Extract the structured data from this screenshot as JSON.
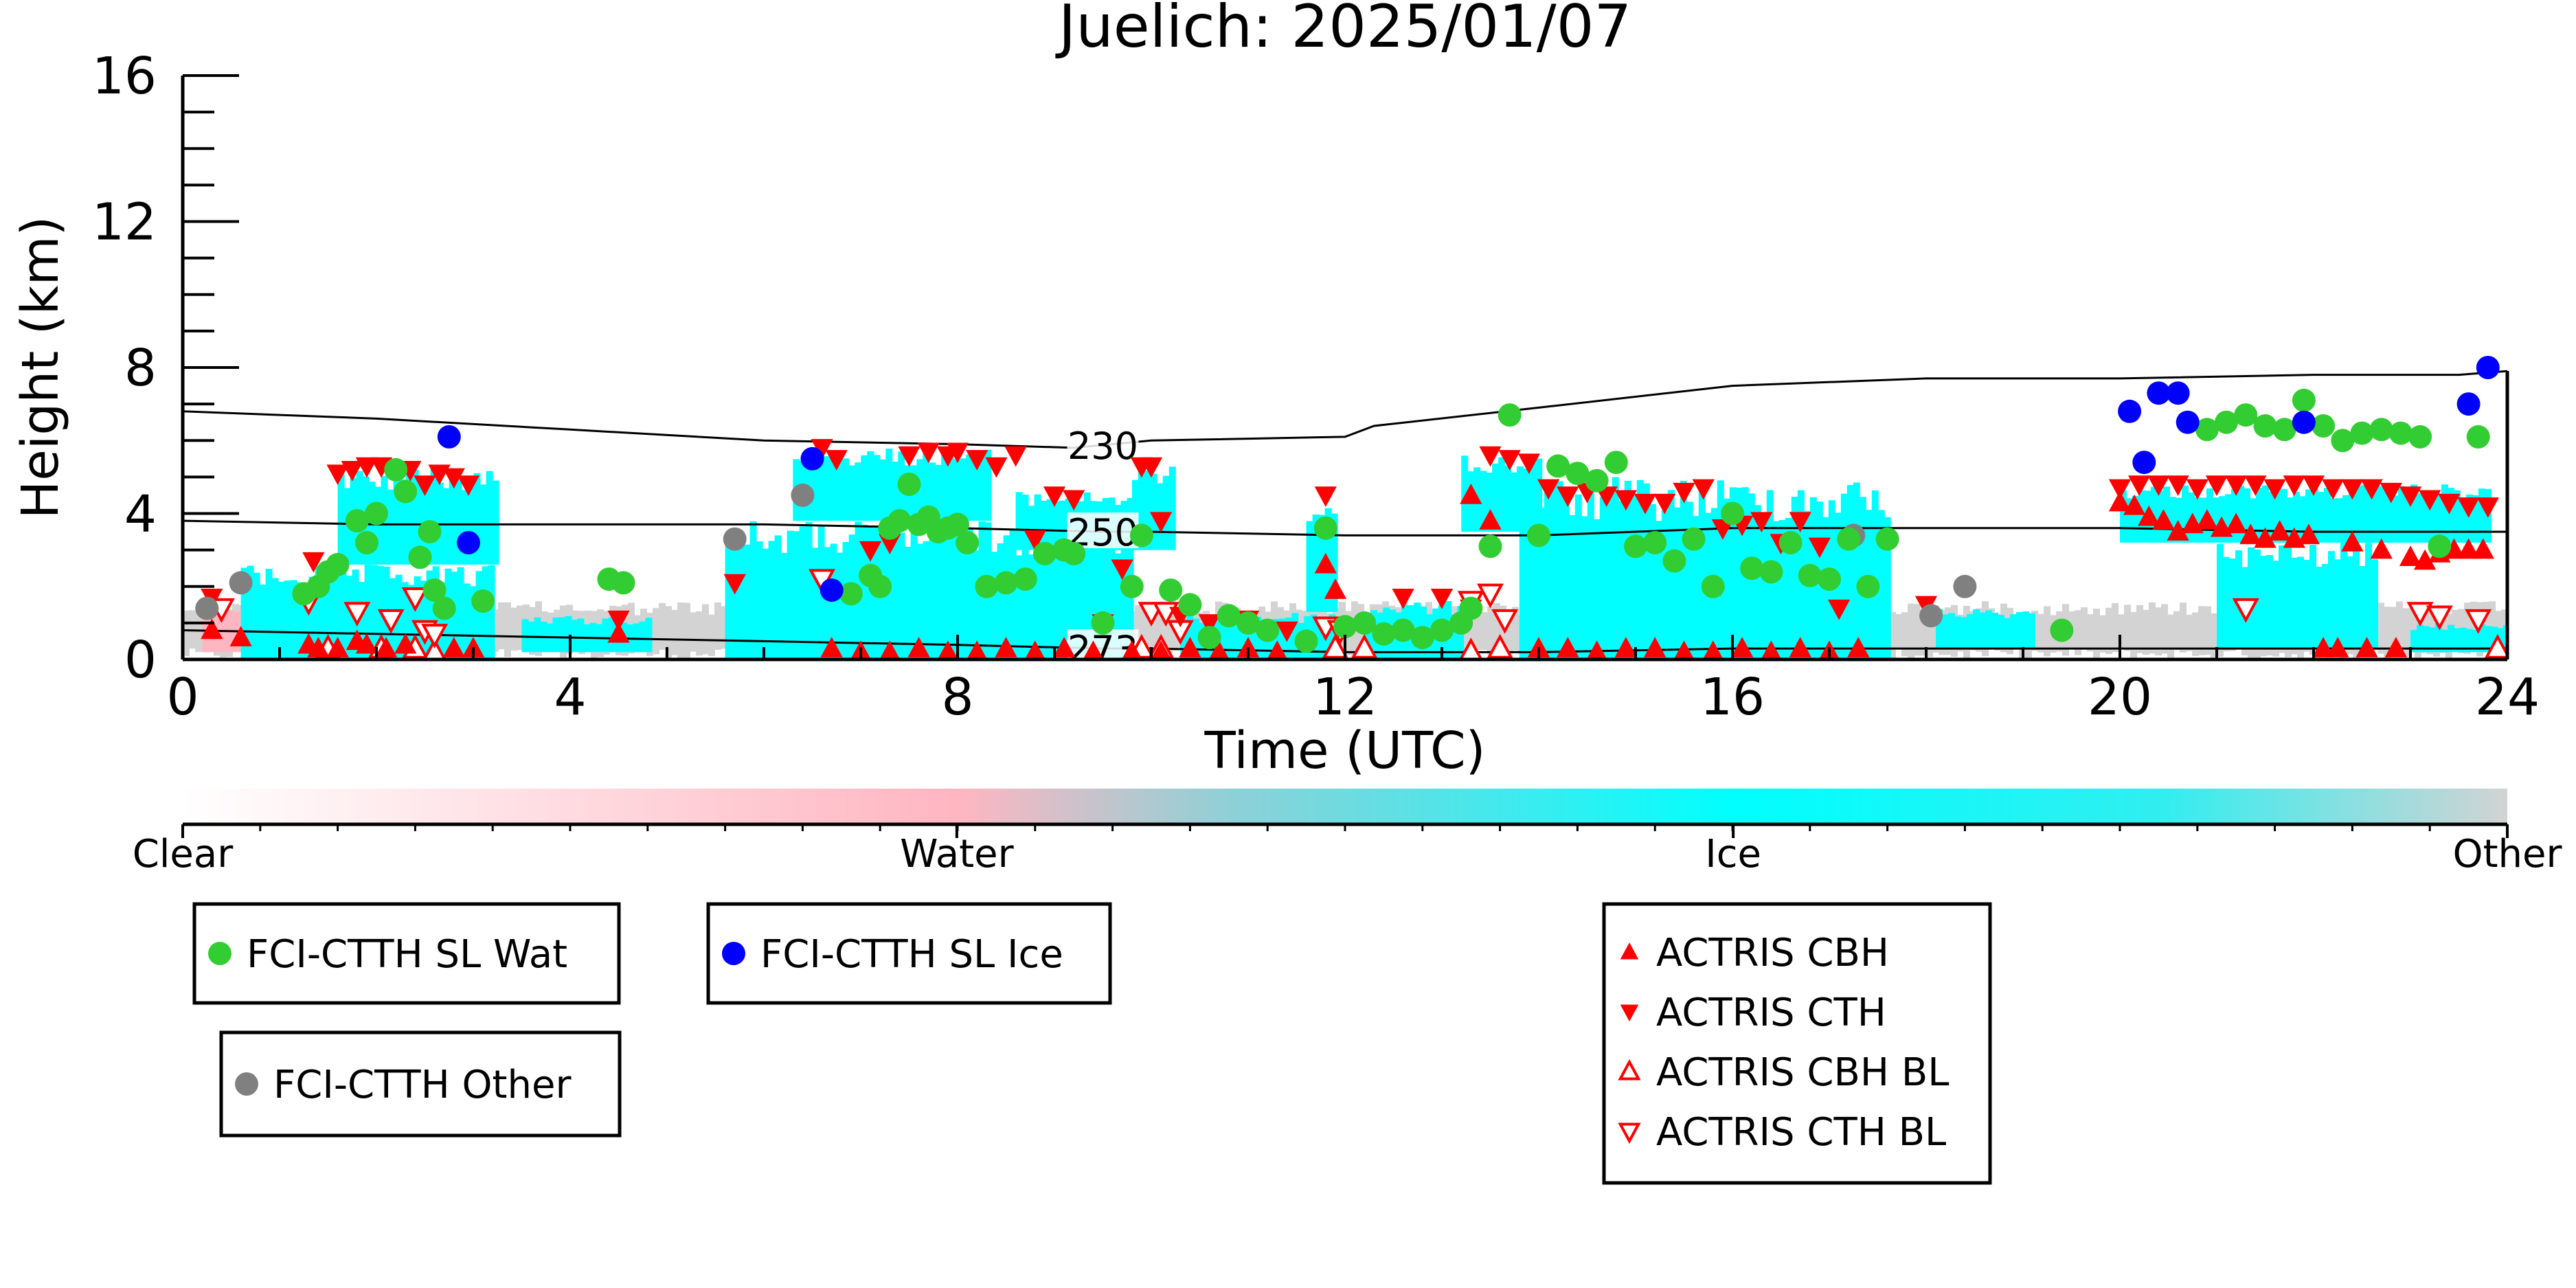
{
  "chart_data": {
    "type": "scatter",
    "title": "Juelich: 2025/01/07",
    "xlabel": "Time (UTC)",
    "ylabel": "Height (km)",
    "xlim": [
      0,
      24
    ],
    "ylim": [
      0,
      16
    ],
    "xticks": [
      0,
      4,
      8,
      12,
      16,
      20,
      24
    ],
    "yticks": [
      0,
      4,
      8,
      12,
      16
    ],
    "grid": false,
    "colorbar": {
      "labels": [
        "Clear",
        "Water",
        "Ice",
        "Other"
      ],
      "positions": [
        0,
        0.333,
        0.667,
        1.0
      ],
      "stops": [
        {
          "offset": 0.0,
          "color": "#ffffff"
        },
        {
          "offset": 0.333,
          "color": "#ffb6c1"
        },
        {
          "offset": 0.45,
          "color": "#8fd0d6"
        },
        {
          "offset": 0.667,
          "color": "#00ffff"
        },
        {
          "offset": 0.85,
          "color": "#30eef0"
        },
        {
          "offset": 1.0,
          "color": "#d3d3d3"
        }
      ]
    },
    "colors": {
      "wat": "#32cd32",
      "ice": "#0000ff",
      "other": "#808080",
      "actris": "#ff0000",
      "ice_cloud": "#00ffff",
      "other_cloud": "#d3d3d3",
      "water_cloud": "#ffb6c1"
    },
    "contours": [
      {
        "label": "230",
        "label_x": 9.5,
        "points": [
          [
            0,
            6.8
          ],
          [
            2,
            6.6
          ],
          [
            4,
            6.3
          ],
          [
            6,
            6.0
          ],
          [
            8,
            5.9
          ],
          [
            9.2,
            5.8
          ],
          [
            10,
            6.0
          ],
          [
            12,
            6.1
          ],
          [
            12.3,
            6.4
          ],
          [
            14,
            6.9
          ],
          [
            16,
            7.5
          ],
          [
            18,
            7.7
          ],
          [
            20,
            7.7
          ],
          [
            22,
            7.8
          ],
          [
            23.5,
            7.8
          ],
          [
            24,
            7.9
          ]
        ]
      },
      {
        "label": "250",
        "label_x": 9.5,
        "points": [
          [
            0,
            3.8
          ],
          [
            2,
            3.7
          ],
          [
            4,
            3.7
          ],
          [
            6,
            3.7
          ],
          [
            8,
            3.6
          ],
          [
            9.5,
            3.5
          ],
          [
            10,
            3.5
          ],
          [
            12,
            3.4
          ],
          [
            14,
            3.4
          ],
          [
            16,
            3.6
          ],
          [
            18,
            3.6
          ],
          [
            20,
            3.6
          ],
          [
            22,
            3.5
          ],
          [
            24,
            3.5
          ]
        ]
      },
      {
        "label": "273",
        "label_x": 9.5,
        "points": [
          [
            0,
            0.8
          ],
          [
            2,
            0.7
          ],
          [
            4,
            0.6
          ],
          [
            6,
            0.5
          ],
          [
            8,
            0.4
          ],
          [
            9.5,
            0.3
          ],
          [
            10,
            0.3
          ],
          [
            12,
            0.2
          ],
          [
            14,
            0.2
          ],
          [
            16,
            0.3
          ],
          [
            18,
            0.3
          ],
          [
            20,
            0.3
          ],
          [
            22,
            0.3
          ],
          [
            24,
            0.3
          ]
        ]
      }
    ],
    "cloud_blocks": [
      {
        "class": "other",
        "x0": 0.0,
        "x1": 24.0,
        "y0": 0.0,
        "y1": 1.6
      },
      {
        "class": "water",
        "x0": 0.2,
        "x1": 0.9,
        "y0": 0.2,
        "y1": 1.5
      },
      {
        "class": "ice",
        "x0": 0.6,
        "x1": 3.2,
        "y0": 0.0,
        "y1": 2.6
      },
      {
        "class": "ice",
        "x0": 1.6,
        "x1": 3.2,
        "y0": 2.6,
        "y1": 5.3
      },
      {
        "class": "ice",
        "x0": 3.5,
        "x1": 4.8,
        "y0": 0.2,
        "y1": 1.2
      },
      {
        "class": "ice",
        "x0": 5.6,
        "x1": 9.8,
        "y0": 0.0,
        "y1": 3.8
      },
      {
        "class": "ice",
        "x0": 6.3,
        "x1": 8.3,
        "y0": 3.8,
        "y1": 5.8
      },
      {
        "class": "ice",
        "x0": 8.6,
        "x1": 9.8,
        "y0": 3.0,
        "y1": 4.6
      },
      {
        "class": "ice",
        "x0": 9.8,
        "x1": 10.2,
        "y0": 3.0,
        "y1": 5.3
      },
      {
        "class": "ice",
        "x0": 10.3,
        "x1": 11.9,
        "y0": 0.0,
        "y1": 1.3
      },
      {
        "class": "ice",
        "x0": 11.6,
        "x1": 11.9,
        "y0": 1.3,
        "y1": 4.4
      },
      {
        "class": "ice",
        "x0": 12.2,
        "x1": 13.2,
        "y0": 0.0,
        "y1": 1.6
      },
      {
        "class": "ice",
        "x0": 13.2,
        "x1": 14.0,
        "y0": 3.5,
        "y1": 5.6
      },
      {
        "class": "ice",
        "x0": 13.8,
        "x1": 17.6,
        "y0": 0.0,
        "y1": 5.0
      },
      {
        "class": "ice",
        "x0": 18.1,
        "x1": 19.1,
        "y0": 0.3,
        "y1": 1.4
      },
      {
        "class": "ice",
        "x0": 20.0,
        "x1": 23.8,
        "y0": 3.2,
        "y1": 4.8
      },
      {
        "class": "ice",
        "x0": 21.0,
        "x1": 22.6,
        "y0": 0.3,
        "y1": 3.2
      },
      {
        "class": "ice",
        "x0": 23.0,
        "x1": 24.0,
        "y0": 0.2,
        "y1": 1.0
      }
    ],
    "series": [
      {
        "name": "FCI-CTTH SL Wat",
        "marker": "circle",
        "color": "#32cd32",
        "x": [
          1.25,
          1.4,
          1.5,
          1.6,
          1.8,
          1.9,
          2.0,
          2.2,
          2.3,
          2.45,
          2.55,
          2.6,
          2.7,
          3.1,
          4.4,
          4.55,
          6.9,
          7.1,
          7.2,
          7.3,
          7.4,
          7.5,
          7.6,
          7.7,
          7.8,
          7.9,
          8.0,
          8.1,
          8.3,
          8.5,
          8.7,
          8.9,
          9.1,
          9.2,
          9.5,
          9.8,
          9.9,
          10.2,
          10.4,
          10.6,
          10.8,
          11.0,
          11.2,
          11.6,
          11.8,
          12.0,
          12.2,
          12.4,
          12.6,
          12.8,
          13.0,
          13.2,
          13.3,
          13.5,
          13.7,
          14.0,
          14.2,
          14.4,
          14.6,
          14.8,
          15.0,
          15.2,
          15.4,
          15.6,
          15.8,
          16.0,
          16.2,
          16.4,
          16.6,
          16.8,
          17.0,
          17.2,
          17.4,
          17.6,
          19.4,
          20.9,
          21.1,
          21.3,
          21.5,
          21.7,
          21.9,
          22.1,
          22.3,
          22.5,
          22.7,
          22.9,
          23.1,
          23.3,
          23.7
        ],
        "y": [
          1.8,
          2.0,
          2.4,
          2.6,
          3.8,
          3.2,
          4.0,
          5.2,
          4.6,
          2.8,
          3.5,
          1.9,
          1.4,
          1.6,
          2.2,
          2.1,
          1.8,
          2.3,
          2.0,
          3.6,
          3.8,
          4.8,
          3.7,
          3.9,
          3.5,
          3.6,
          3.7,
          3.2,
          2.0,
          2.1,
          2.2,
          2.9,
          3.0,
          2.9,
          1.0,
          2.0,
          3.4,
          1.9,
          1.5,
          0.6,
          1.2,
          1.0,
          0.8,
          0.5,
          3.6,
          0.9,
          1.0,
          0.7,
          0.8,
          0.6,
          0.8,
          1.0,
          1.4,
          3.1,
          6.7,
          3.4,
          5.3,
          5.1,
          4.9,
          5.4,
          3.1,
          3.2,
          2.7,
          3.3,
          2.0,
          4.0,
          2.5,
          2.4,
          3.2,
          2.3,
          2.2,
          3.3,
          2.0,
          3.3,
          0.8,
          6.3,
          6.5,
          6.7,
          6.4,
          6.3,
          7.1,
          6.4,
          6.0,
          6.2,
          6.3,
          6.2,
          6.1,
          3.1,
          6.1
        ]
      },
      {
        "name": "FCI-CTTH SL Ice",
        "marker": "circle",
        "color": "#0000ff",
        "x": [
          2.75,
          2.95,
          6.5,
          6.7,
          20.1,
          20.25,
          20.4,
          20.6,
          20.7,
          21.9,
          23.6,
          23.8
        ],
        "y": [
          6.1,
          3.2,
          5.5,
          1.9,
          6.8,
          5.4,
          7.3,
          7.3,
          6.5,
          6.5,
          7.0,
          8.0
        ]
      },
      {
        "name": "FCI-CTTH Other",
        "marker": "circle",
        "color": "#808080",
        "x": [
          0.25,
          0.6,
          5.7,
          6.4,
          17.25,
          18.05,
          18.4
        ],
        "y": [
          1.4,
          2.1,
          3.3,
          4.5,
          3.4,
          1.2,
          2.0
        ]
      },
      {
        "name": "ACTRIS CBH",
        "marker": "triangle-up",
        "color": "#ff0000",
        "x": [
          0.3,
          0.6,
          1.3,
          1.4,
          1.6,
          1.8,
          1.9,
          2.1,
          2.3,
          2.8,
          3.0,
          4.5,
          6.7,
          7.0,
          7.3,
          7.6,
          7.9,
          8.2,
          8.5,
          8.8,
          9.1,
          9.4,
          9.8,
          10.1,
          10.4,
          10.7,
          11.0,
          11.3,
          11.8,
          11.9,
          13.3,
          13.5,
          14.0,
          14.3,
          14.6,
          14.9,
          15.2,
          15.5,
          15.8,
          16.1,
          16.4,
          16.7,
          17.0,
          17.3,
          20.0,
          20.15,
          20.3,
          20.45,
          20.6,
          20.75,
          20.9,
          21.05,
          21.2,
          21.35,
          21.5,
          21.65,
          21.8,
          21.95,
          22.1,
          22.25,
          22.4,
          22.55,
          22.7,
          22.85,
          23.0,
          23.15,
          23.3,
          23.45,
          23.6,
          23.75
        ],
        "y": [
          0.8,
          0.6,
          0.4,
          0.3,
          0.3,
          0.5,
          0.4,
          0.3,
          0.4,
          0.3,
          0.3,
          0.7,
          0.3,
          0.2,
          0.2,
          0.3,
          0.2,
          0.2,
          0.3,
          0.2,
          0.3,
          0.2,
          0.2,
          0.2,
          0.3,
          0.2,
          0.3,
          0.2,
          2.6,
          1.9,
          4.5,
          3.8,
          0.3,
          0.3,
          0.2,
          0.3,
          0.3,
          0.2,
          0.2,
          0.3,
          0.2,
          0.3,
          0.2,
          0.3,
          4.3,
          4.2,
          3.9,
          3.8,
          3.5,
          3.7,
          3.8,
          3.6,
          3.7,
          3.4,
          3.3,
          3.5,
          3.3,
          3.4,
          0.3,
          0.3,
          3.2,
          0.3,
          3.0,
          0.3,
          2.8,
          2.7,
          2.9,
          3.0,
          3.0,
          3.0
        ],
        "filled": true
      },
      {
        "name": "ACTRIS CTH",
        "marker": "triangle-down",
        "color": "#ff0000",
        "x": [
          0.3,
          1.35,
          1.6,
          1.75,
          1.9,
          2.05,
          2.2,
          2.35,
          2.5,
          2.65,
          2.8,
          2.95,
          4.5,
          5.7,
          6.6,
          6.75,
          7.1,
          7.3,
          7.5,
          7.7,
          7.9,
          8.0,
          8.2,
          8.4,
          8.6,
          8.8,
          9.0,
          9.2,
          9.5,
          9.7,
          9.9,
          10.0,
          10.1,
          10.3,
          10.6,
          11.0,
          11.4,
          11.8,
          12.6,
          13.0,
          13.3,
          13.5,
          13.7,
          13.9,
          14.1,
          14.3,
          14.5,
          14.7,
          14.9,
          15.1,
          15.3,
          15.5,
          15.7,
          15.9,
          16.1,
          16.3,
          16.5,
          16.7,
          16.9,
          17.1,
          18.0,
          20.0,
          20.2,
          20.4,
          20.6,
          20.8,
          21.0,
          21.2,
          21.4,
          21.6,
          21.8,
          22.0,
          22.2,
          22.4,
          22.6,
          22.8,
          23.0,
          23.2,
          23.4,
          23.6,
          23.8
        ],
        "y": [
          1.7,
          2.7,
          5.1,
          5.2,
          5.3,
          5.3,
          5.2,
          5.2,
          4.8,
          5.1,
          5.0,
          4.8,
          1.1,
          2.1,
          5.8,
          5.5,
          3.0,
          3.2,
          5.6,
          5.7,
          5.6,
          5.7,
          5.5,
          5.3,
          5.6,
          3.3,
          4.5,
          4.4,
          1.0,
          2.5,
          5.3,
          5.3,
          3.8,
          1.2,
          1.0,
          1.1,
          0.8,
          4.5,
          1.7,
          1.7,
          1.4,
          5.6,
          5.5,
          5.4,
          4.7,
          4.5,
          4.6,
          4.5,
          4.4,
          4.3,
          4.3,
          4.6,
          4.7,
          3.6,
          3.7,
          3.8,
          3.2,
          3.8,
          3.1,
          1.4,
          1.5,
          4.7,
          4.8,
          4.8,
          4.8,
          4.7,
          4.8,
          4.8,
          4.8,
          4.7,
          4.8,
          4.8,
          4.7,
          4.7,
          4.7,
          4.6,
          4.5,
          4.4,
          4.3,
          4.2,
          4.2
        ],
        "filled": true
      },
      {
        "name": "ACTRIS CBH BL",
        "marker": "triangle-up",
        "color": "#ff0000",
        "x": [
          1.5,
          2.05,
          2.4,
          2.6,
          9.9,
          10.1,
          11.9,
          12.2,
          13.3,
          13.6,
          23.9
        ],
        "y": [
          0.3,
          0.3,
          0.3,
          0.2,
          0.3,
          0.3,
          0.3,
          0.3,
          0.2,
          0.3,
          0.3
        ],
        "filled": false
      },
      {
        "name": "ACTRIS CTH BL",
        "marker": "triangle-down",
        "color": "#ff0000",
        "x": [
          0.4,
          1.3,
          1.8,
          2.15,
          2.4,
          2.5,
          2.6,
          6.6,
          10.0,
          10.15,
          10.3,
          11.8,
          11.95,
          13.3,
          13.5,
          13.65,
          21.3,
          23.1,
          23.3,
          23.7
        ],
        "y": [
          1.4,
          1.6,
          1.3,
          1.1,
          1.7,
          0.8,
          0.7,
          2.2,
          1.3,
          1.3,
          0.8,
          0.9,
          0.8,
          1.6,
          1.8,
          1.1,
          1.4,
          1.3,
          1.2,
          1.1
        ],
        "filled": false
      }
    ],
    "legend_groups": [
      [
        "FCI-CTTH SL Wat"
      ],
      [
        "FCI-CTTH SL Ice"
      ],
      [
        "FCI-CTTH Other"
      ],
      [
        "ACTRIS CBH",
        "ACTRIS CTH",
        "ACTRIS CBH BL",
        "ACTRIS CTH BL"
      ]
    ]
  }
}
